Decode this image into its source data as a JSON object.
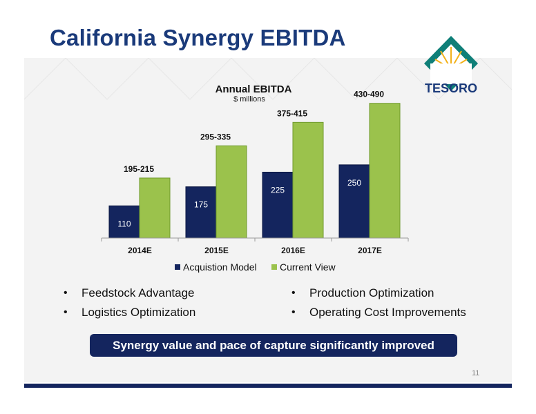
{
  "slide": {
    "title": "California Synergy EBITDA",
    "page_number": "11",
    "banner": "Synergy value and pace of capture significantly improved",
    "logo_text": "TESORO"
  },
  "bullets_left": [
    "Feedstock Advantage",
    "Logistics Optimization"
  ],
  "bullets_right": [
    "Production Optimization",
    "Operating Cost Improvements"
  ],
  "bullet_glyph": "•",
  "colors": {
    "navy": "#14255e",
    "green": "#9bc24c",
    "teal": "#0f7f78",
    "gold": "#f2b11a"
  },
  "chart_data": {
    "type": "bar",
    "title": "Annual EBITDA",
    "subtitle": "$ millions",
    "categories": [
      "2014E",
      "2015E",
      "2016E",
      "2017E"
    ],
    "series": [
      {
        "name": "Acquistion Model",
        "values": [
          110,
          175,
          225,
          250
        ],
        "labels": [
          "110",
          "175",
          "225",
          "250"
        ]
      },
      {
        "name": "Current View",
        "values": [
          205,
          315,
          395,
          460
        ],
        "labels": [
          "195-215",
          "295-335",
          "375-415",
          "430-490"
        ]
      }
    ],
    "ylim": [
      0,
      490
    ],
    "grid": false,
    "legend": "bottom"
  }
}
